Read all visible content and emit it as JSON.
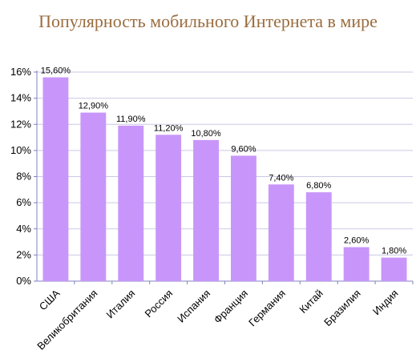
{
  "colors": {
    "title": "#9a6c3e",
    "bar": "#c896fa",
    "grid": "#c9c9e6",
    "axis": "#8080c0"
  },
  "chart_data": {
    "type": "bar",
    "title": "Популярность мобильного Интернета в мире",
    "xlabel": "",
    "ylabel": "",
    "ylim": [
      0,
      16
    ],
    "yticks": [
      0,
      2,
      4,
      6,
      8,
      10,
      12,
      14,
      16
    ],
    "ytick_labels": [
      "0%",
      "2%",
      "4%",
      "6%",
      "8%",
      "10%",
      "12%",
      "14%",
      "16%"
    ],
    "grid": true,
    "legend": "none",
    "categories": [
      "США",
      "Великобритания",
      "Италия",
      "Россия",
      "Испания",
      "Франция",
      "Германия",
      "Китай",
      "Бразилия",
      "Индия"
    ],
    "values": [
      15.6,
      12.9,
      11.9,
      11.2,
      10.8,
      9.6,
      7.4,
      6.8,
      2.6,
      1.8
    ],
    "value_labels": [
      "15,60%",
      "12,90%",
      "11,90%",
      "11,20%",
      "10,80%",
      "9,60%",
      "7,40%",
      "6,80%",
      "2,60%",
      "1,80%"
    ]
  }
}
